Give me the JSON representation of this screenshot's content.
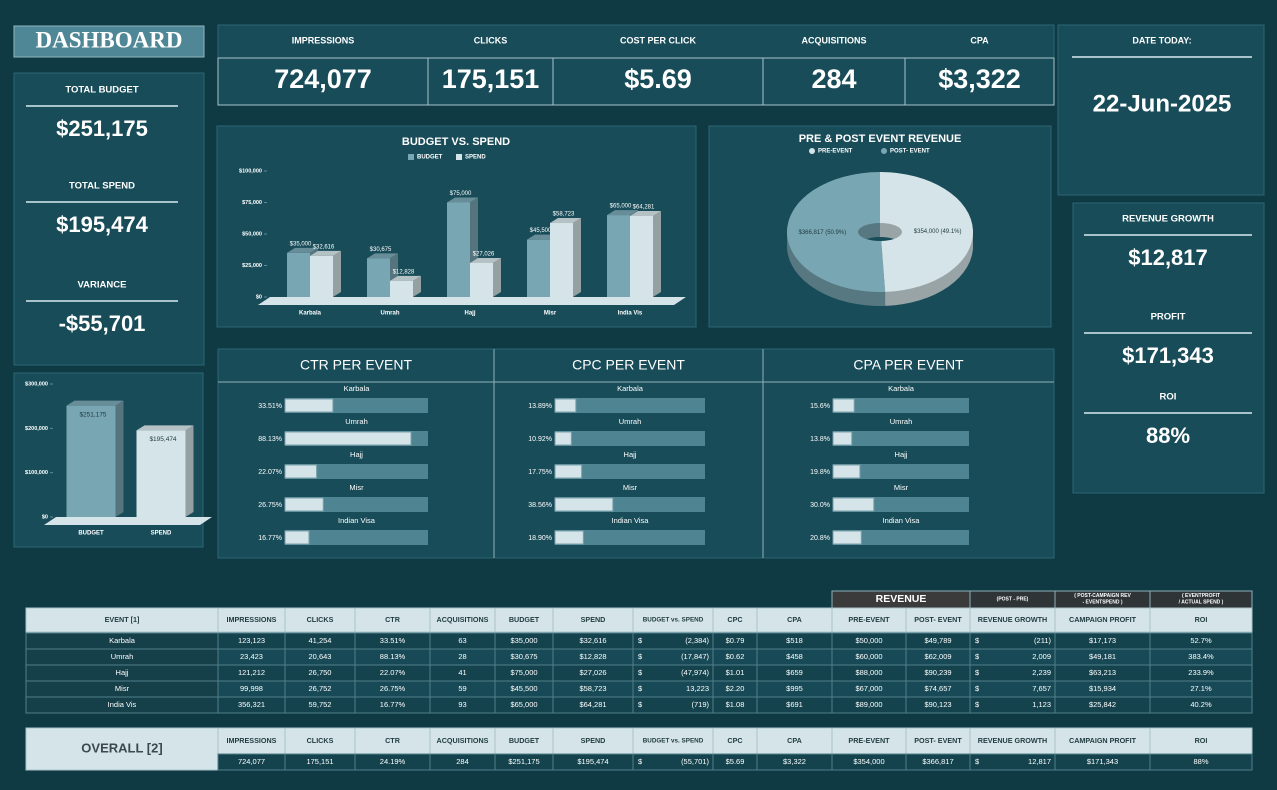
{
  "header": {
    "title": "DASHBOARD"
  },
  "kpis": [
    {
      "label": "IMPRESSIONS",
      "value": "724,077"
    },
    {
      "label": "CLICKS",
      "value": "175,151"
    },
    {
      "label": "COST PER CLICK",
      "value": "$5.69"
    },
    {
      "label": "ACQUISITIONS",
      "value": "284"
    },
    {
      "label": "CPA",
      "value": "$3,322"
    }
  ],
  "date": {
    "label": "DATE TODAY:",
    "value": "22-Jun-2025"
  },
  "left_stats": [
    {
      "label": "TOTAL BUDGET",
      "value": "$251,175"
    },
    {
      "label": "TOTAL SPEND",
      "value": "$195,474"
    },
    {
      "label": "VARIANCE",
      "value": "-$55,701"
    }
  ],
  "right_stats": [
    {
      "label": "REVENUE GROWTH",
      "value": "$12,817"
    },
    {
      "label": "PROFIT",
      "value": "$171,343"
    },
    {
      "label": "ROI",
      "value": "88%"
    }
  ],
  "chart_data": [
    {
      "type": "bar",
      "title": "BUDGET VS. SPEND",
      "categories": [
        "Karbala",
        "Umrah",
        "Hajj",
        "Misr",
        "India Vis"
      ],
      "series": [
        {
          "name": "BUDGET",
          "color": "#79a6b3",
          "values": [
            35000,
            30675,
            75000,
            45500,
            65000
          ],
          "value_labels": [
            "$35,000",
            "$30,675",
            "$75,000",
            "$45,500",
            "$65,000"
          ]
        },
        {
          "name": "SPEND",
          "color": "#d5e4e8",
          "values": [
            32616,
            12828,
            27026,
            58723,
            64281
          ],
          "value_labels": [
            "$32,616",
            "$12,828",
            "$27,026",
            "$58,723",
            "$64,281"
          ]
        }
      ],
      "ylim": [
        0,
        100000
      ],
      "yticks": [
        {
          "value": 0,
          "label": "$0"
        },
        {
          "value": 25000,
          "label": "$25,000"
        },
        {
          "value": 50000,
          "label": "$50,000"
        },
        {
          "value": 75000,
          "label": "$75,000"
        },
        {
          "value": 100000,
          "label": "$100,000"
        }
      ]
    },
    {
      "type": "pie",
      "title": "PRE & POST EVENT REVENUE",
      "categories": [
        "PRE-EVENT",
        "POST- EVENT"
      ],
      "values": [
        354000,
        366817
      ],
      "value_labels": [
        "$354,000 (49.1%)",
        "$366,817 (50.9%)"
      ],
      "colors": [
        "#d5e4e8",
        "#79a6b3"
      ]
    },
    {
      "type": "bar",
      "categories": [
        "BUDGET",
        "SPEND"
      ],
      "values": [
        251175,
        195474
      ],
      "value_labels": [
        "$251,175",
        "$195,474"
      ],
      "colors": [
        "#79a6b3",
        "#d5e4e8"
      ],
      "ylim": [
        0,
        300000
      ],
      "yticks": [
        {
          "value": 0,
          "label": "$0"
        },
        {
          "value": 100000,
          "label": "$100,000"
        },
        {
          "value": 200000,
          "label": "$200,000"
        },
        {
          "value": 300000,
          "label": "$300,000"
        }
      ]
    },
    {
      "type": "hbar",
      "title": "CTR PER EVENT",
      "categories": [
        "Karbala",
        "Umrah",
        "Hajj",
        "Misr",
        "Indian Visa"
      ],
      "values": [
        33.51,
        88.13,
        22.07,
        26.75,
        16.77
      ],
      "value_labels": [
        "33.51%",
        "88.13%",
        "22.07%",
        "26.75%",
        "16.77%"
      ],
      "xlim": [
        0,
        100
      ]
    },
    {
      "type": "hbar",
      "title": "CPC PER EVENT",
      "categories": [
        "Karbala",
        "Umrah",
        "Hajj",
        "Misr",
        "Indian Visa"
      ],
      "values": [
        13.89,
        10.92,
        17.75,
        38.56,
        18.9
      ],
      "value_labels": [
        "13.89%",
        "10.92%",
        "17.75%",
        "38.56%",
        "18.90%"
      ],
      "xlim": [
        0,
        100
      ]
    },
    {
      "type": "hbar",
      "title": "CPA PER EVENT",
      "categories": [
        "Karbala",
        "Umrah",
        "Hajj",
        "Misr",
        "Indian Visa"
      ],
      "values": [
        15.6,
        13.8,
        19.8,
        30.0,
        20.8
      ],
      "value_labels": [
        "15.6%",
        "13.8%",
        "19.8%",
        "30.0%",
        "20.8%"
      ],
      "xlim": [
        0,
        100
      ]
    }
  ],
  "table": {
    "group_headers": [
      {
        "lines": [
          "REVENUE"
        ]
      },
      {
        "lines": [
          "(POST - PRE)"
        ]
      },
      {
        "lines": [
          "( POST-CAMPAIGN REV",
          "- EVENTSPEND )"
        ]
      },
      {
        "lines": [
          "( EVENTPROFIT",
          "/ ACTUAL SPEND )"
        ]
      }
    ],
    "headers": [
      "EVENT [1]",
      "IMPRESSIONS",
      "CLICKS",
      "CTR",
      "ACQUISITIONS",
      "BUDGET",
      "SPEND",
      "BUDGET vs. SPEND",
      "CPC",
      "CPA",
      "PRE-EVENT",
      "POST- EVENT",
      "REVENUE GROWTH",
      "CAMPAIGN PROFIT",
      "ROI"
    ],
    "rows": [
      [
        "Karbala",
        "123,123",
        "41,254",
        "33.51%",
        "63",
        "$35,000",
        "$32,616",
        "$",
        "(2,384)",
        "$0.79",
        "$518",
        "$50,000",
        "$49,789",
        "$",
        "(211)",
        "$17,173",
        "52.7%"
      ],
      [
        "Umrah",
        "23,423",
        "20,643",
        "88.13%",
        "28",
        "$30,675",
        "$12,828",
        "$",
        "(17,847)",
        "$0.62",
        "$458",
        "$60,000",
        "$62,009",
        "$",
        "2,009",
        "$49,181",
        "383.4%"
      ],
      [
        "Hajj",
        "121,212",
        "26,750",
        "22.07%",
        "41",
        "$75,000",
        "$27,026",
        "$",
        "(47,974)",
        "$1.01",
        "$659",
        "$88,000",
        "$90,239",
        "$",
        "2,239",
        "$63,213",
        "233.9%"
      ],
      [
        "Misr",
        "99,998",
        "26,752",
        "26.75%",
        "59",
        "$45,500",
        "$58,723",
        "$",
        "13,223",
        "$2.20",
        "$995",
        "$67,000",
        "$74,657",
        "$",
        "7,657",
        "$15,934",
        "27.1%"
      ],
      [
        "India Vis",
        "356,321",
        "59,752",
        "16.77%",
        "93",
        "$65,000",
        "$64,281",
        "$",
        "(719)",
        "$1.08",
        "$691",
        "$89,000",
        "$90,123",
        "$",
        "1,123",
        "$25,842",
        "40.2%"
      ]
    ],
    "overall": {
      "label": "OVERALL [2]",
      "headers": [
        "IMPRESSIONS",
        "CLICKS",
        "CTR",
        "ACQUISITIONS",
        "BUDGET",
        "SPEND",
        "BUDGET vs. SPEND",
        "CPC",
        "CPA",
        "PRE-EVENT",
        "POST- EVENT",
        "REVENUE GROWTH",
        "CAMPAIGN PROFIT",
        "ROI"
      ],
      "row": [
        "724,077",
        "175,151",
        "24.19%",
        "284",
        "$251,175",
        "$195,474",
        "$",
        "(55,701)",
        "$5.69",
        "$3,322",
        "$354,000",
        "$366,817",
        "$",
        "12,817",
        "$171,343",
        "88%"
      ]
    }
  }
}
